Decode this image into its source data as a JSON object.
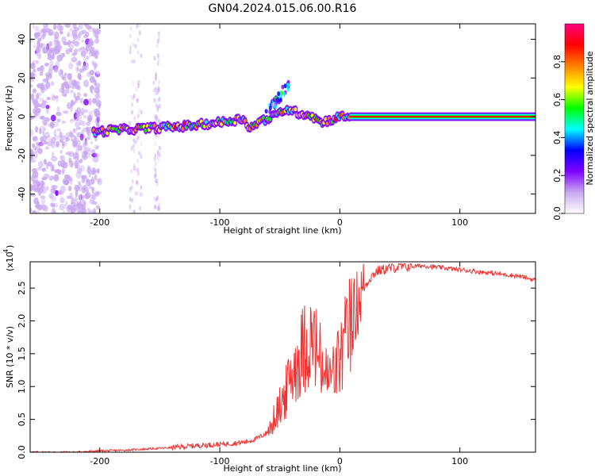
{
  "page_title": "GN04.2024.015.06.00.R16",
  "chart_data": [
    {
      "type": "heatmap",
      "xlabel": "Height of straight line (km)",
      "ylabel": "Frequency (Hz)",
      "xlim": [
        -258,
        163
      ],
      "ylim": [
        -50,
        48
      ],
      "xticks": [
        -200,
        -100,
        0,
        100
      ],
      "yticks": [
        -40,
        -20,
        0,
        20,
        40
      ],
      "colorbar": {
        "label": "Normalized spectral amplitude",
        "range": [
          0.0,
          1.0
        ],
        "ticks": [
          "0.0",
          "0.2",
          "0.4",
          "0.6",
          "0.8"
        ],
        "colormap": [
          "#ffffff",
          "#c8a8f0",
          "#7f00ff",
          "#0000ff",
          "#00ffff",
          "#00ff00",
          "#ffff00",
          "#ff7f00",
          "#ff0000",
          "#ff0080"
        ]
      },
      "ridge": {
        "x": [
          -205,
          -190,
          -175,
          -160,
          -145,
          -130,
          -115,
          -100,
          -90,
          -80,
          -75,
          -65,
          -55,
          -45,
          -35,
          -25,
          -15,
          -5,
          0,
          10,
          50,
          100,
          163
        ],
        "frequency": [
          -8,
          -7,
          -6.5,
          -6,
          -5.5,
          -5,
          -4,
          -3,
          -2,
          -1,
          -6,
          -2,
          0,
          4,
          2,
          1,
          -3,
          -1,
          0,
          0,
          0,
          0,
          0
        ]
      },
      "grid": false
    },
    {
      "type": "line",
      "xlabel": "Height of straight line (km)",
      "ylabel": "SNR (10 * v/v)",
      "multiplier_label": "(x10",
      "multiplier_exponent": "4",
      "xlim": [
        -258,
        163
      ],
      "ylim": [
        0.0,
        2.9
      ],
      "xticks": [
        -200,
        -100,
        0,
        100
      ],
      "yticks": [
        "0.0",
        "0.5",
        "1.0",
        "1.5",
        "2.0",
        "2.5"
      ],
      "ytick_values": [
        0.0,
        0.5,
        1.0,
        1.5,
        2.0,
        2.5
      ],
      "series": [
        {
          "color": "#ee3333",
          "x": [
            -258,
            -220,
            -200,
            -180,
            -160,
            -140,
            -120,
            -100,
            -80,
            -70,
            -60,
            -55,
            -50,
            -45,
            -40,
            -35,
            -30,
            -25,
            -20,
            -15,
            -10,
            -5,
            0,
            5,
            10,
            15,
            20,
            25,
            30,
            40,
            50,
            60,
            70,
            80,
            90,
            100,
            110,
            120,
            130,
            140,
            150,
            163
          ],
          "values": [
            0.0,
            0.0,
            0.02,
            0.03,
            0.05,
            0.07,
            0.1,
            0.12,
            0.15,
            0.2,
            0.3,
            0.5,
            0.7,
            0.9,
            1.2,
            1.4,
            1.6,
            1.7,
            1.6,
            1.3,
            1.1,
            1.2,
            1.4,
            1.7,
            2.0,
            2.3,
            2.5,
            2.65,
            2.75,
            2.8,
            2.82,
            2.83,
            2.84,
            2.82,
            2.8,
            2.78,
            2.76,
            2.74,
            2.72,
            2.7,
            2.68,
            2.62
          ]
        }
      ],
      "grid": false
    }
  ]
}
